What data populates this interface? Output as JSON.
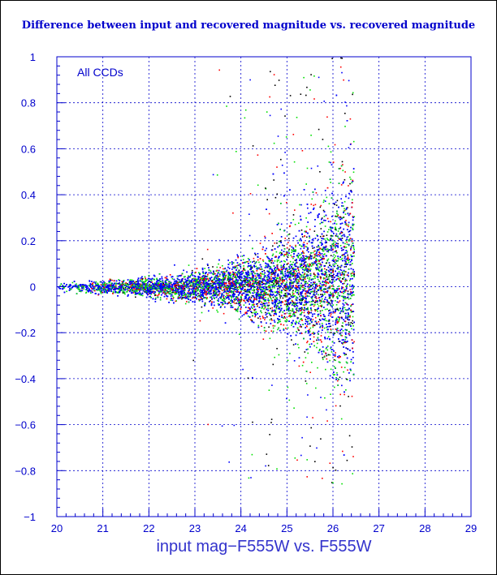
{
  "chart_data": {
    "type": "scatter",
    "title": "Difference between input and recovered magnitude vs. recovered magnitude",
    "xlabel": "input mag−F555W vs. F555W",
    "ylabel": "",
    "annotation": "All CCDs",
    "xlim": [
      20,
      29
    ],
    "ylim": [
      -1,
      1
    ],
    "x_ticks": [
      20,
      21,
      22,
      23,
      24,
      25,
      26,
      27,
      28,
      29
    ],
    "y_ticks": [
      -1,
      -0.8,
      -0.6,
      -0.4,
      -0.2,
      0,
      0.2,
      0.4,
      0.6,
      0.8,
      1
    ],
    "grid": true,
    "series_colors": [
      "#0000ff",
      "#00e000",
      "#ff0000",
      "#000000"
    ],
    "series": [
      {
        "color": "#0000ff",
        "description_x_range": [
          20.0,
          26.45
        ]
      },
      {
        "color": "#00e000",
        "description_x_range": [
          20.0,
          26.45
        ]
      },
      {
        "color": "#ff0000",
        "description_x_range": [
          20.5,
          26.45
        ]
      },
      {
        "color": "#000000",
        "description_x_range": [
          21.0,
          26.45
        ]
      }
    ],
    "envelope": [
      {
        "x": 20.0,
        "y_low": -0.02,
        "y_high": 0.02
      },
      {
        "x": 21.0,
        "y_low": -0.03,
        "y_high": 0.03
      },
      {
        "x": 22.0,
        "y_low": -0.05,
        "y_high": 0.05
      },
      {
        "x": 23.0,
        "y_low": -0.07,
        "y_high": 0.07
      },
      {
        "x": 24.0,
        "y_low": -0.12,
        "y_high": 0.12
      },
      {
        "x": 25.0,
        "y_low": -0.22,
        "y_high": 0.22
      },
      {
        "x": 25.5,
        "y_low": -0.3,
        "y_high": 0.32
      },
      {
        "x": 26.0,
        "y_low": -0.38,
        "y_high": 0.45
      },
      {
        "x": 26.4,
        "y_low": -0.45,
        "y_high": 0.55
      }
    ]
  }
}
